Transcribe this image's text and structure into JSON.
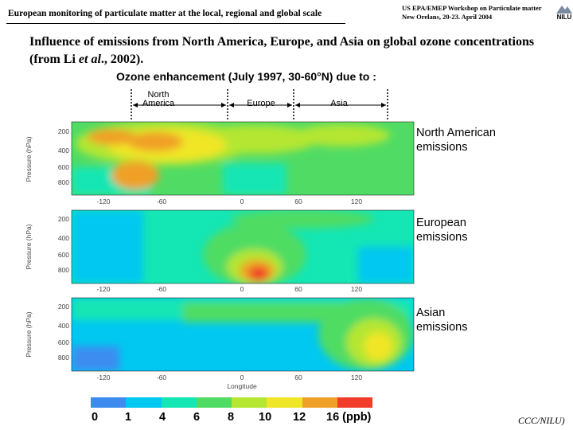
{
  "header": {
    "left": "European monitoring of particulate matter at the local, regional and global scale",
    "right_line1": "US EPA/EMEP Workshop on Particulate matter",
    "right_line2": "New Orelans, 20-23. April 2004",
    "logo_text": "NILU"
  },
  "slide_title": {
    "part1": "Influence of emissions from North America, Europe, and Asia on global ozone concentrations (from Li ",
    "italic": "et al",
    "part2": "., 2002)."
  },
  "figure": {
    "title": "Ozone enhancement (July 1997, 30-60°N) due to :",
    "regions": [
      "North America",
      "Europe",
      "Asia"
    ],
    "panels": [
      {
        "label": "North American emissions",
        "line1": "North American",
        "line2": "emissions"
      },
      {
        "label": "European emissions",
        "line1": "European",
        "line2": "emissions"
      },
      {
        "label": "Asian emissions",
        "line1": "Asian",
        "line2": "emissions"
      }
    ],
    "y_axis_label": "Pressure (hPa)",
    "y_ticks": [
      "200",
      "400",
      "600",
      "800"
    ],
    "x_ticks": [
      "-120",
      "-60",
      "0",
      "60",
      "120"
    ],
    "x_axis_label": "Longitude",
    "scale_labels": [
      "0",
      "1",
      "4",
      "6",
      "8",
      "10",
      "12",
      "16 (ppb)"
    ],
    "scale_colors": [
      "#3c8cf0",
      "#00c8f0",
      "#14e6b4",
      "#50dc64",
      "#b4e632",
      "#f0e628",
      "#f0a028",
      "#f03c28"
    ]
  },
  "footer": "CCC/NILU)"
}
